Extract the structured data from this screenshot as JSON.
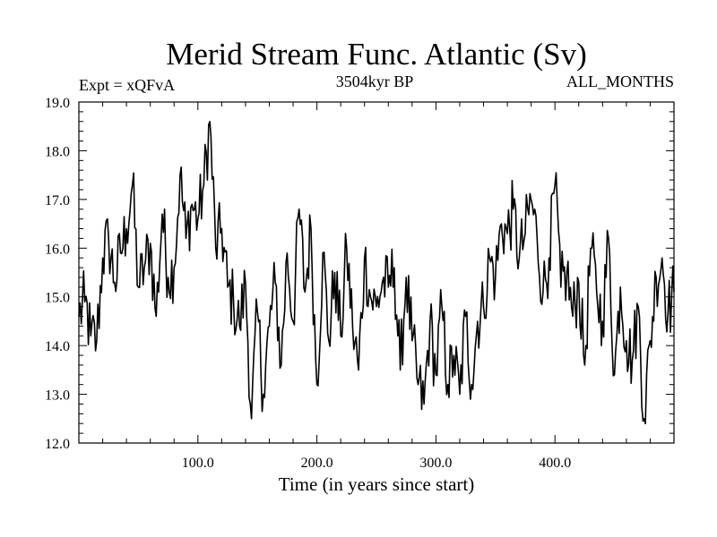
{
  "chart_data": {
    "type": "line",
    "title": "Merid Stream Func. Atlantic (Sv)",
    "subtitle_left": "Expt = xQFvA",
    "subtitle_center": "3504kyr BP",
    "subtitle_right": "ALL_MONTHS",
    "xlabel": "Time (in years since start)",
    "ylabel": "",
    "xlim": [
      0,
      500
    ],
    "ylim": [
      12.0,
      19.0
    ],
    "x_ticks": [
      100.0,
      200.0,
      300.0,
      400.0
    ],
    "x_tick_labels": [
      "100.0",
      "200.0",
      "300.0",
      "400.0"
    ],
    "y_ticks": [
      12.0,
      13.0,
      14.0,
      15.0,
      16.0,
      17.0,
      18.0,
      19.0
    ],
    "y_tick_labels": [
      "12.0",
      "13.0",
      "14.0",
      "15.0",
      "16.0",
      "17.0",
      "18.0",
      "19.0"
    ],
    "grid": false,
    "series": [
      {
        "name": "Merid Stream Func. Atlantic",
        "color": "#000000",
        "x": [
          0,
          5,
          10,
          15,
          20,
          25,
          30,
          35,
          40,
          45,
          50,
          55,
          60,
          65,
          70,
          75,
          80,
          85,
          90,
          95,
          100,
          105,
          110,
          115,
          120,
          125,
          130,
          135,
          140,
          145,
          150,
          155,
          160,
          165,
          170,
          175,
          180,
          185,
          190,
          195,
          200,
          205,
          210,
          215,
          220,
          225,
          230,
          235,
          240,
          245,
          250,
          255,
          260,
          265,
          270,
          275,
          280,
          285,
          290,
          295,
          300,
          305,
          310,
          315,
          320,
          325,
          330,
          335,
          340,
          345,
          350,
          355,
          360,
          365,
          370,
          375,
          380,
          385,
          390,
          395,
          400,
          405,
          410,
          415,
          420,
          425,
          430,
          435,
          440,
          445,
          450,
          455,
          460,
          465,
          470,
          475,
          480,
          485,
          490,
          495,
          500
        ],
        "values": [
          14.6,
          14.9,
          14.2,
          14.1,
          15.8,
          16.2,
          15.3,
          15.9,
          16.4,
          17.3,
          15.2,
          15.6,
          16.1,
          14.6,
          16.7,
          15.4,
          15.6,
          17.5,
          16.2,
          16.9,
          16.6,
          17.3,
          18.6,
          16.0,
          16.4,
          15.2,
          14.9,
          14.4,
          15.3,
          12.5,
          14.7,
          13.0,
          14.4,
          15.3,
          13.6,
          15.9,
          14.5,
          16.8,
          15.1,
          16.4,
          13.2,
          15.9,
          14.1,
          15.5,
          14.2,
          16.0,
          14.4,
          13.5,
          15.8,
          15.0,
          14.8,
          15.3,
          15.2,
          15.6,
          13.5,
          15.4,
          14.1,
          13.2,
          12.8,
          14.5,
          13.4,
          14.8,
          13.2,
          13.8,
          13.0,
          14.6,
          13.2,
          14.5,
          14.8,
          15.8,
          15.4,
          16.5,
          16.3,
          16.8,
          15.8,
          16.3,
          17.0,
          16.2,
          15.1,
          15.8,
          17.3,
          15.2,
          15.5,
          14.6,
          15.3,
          13.6,
          16.0,
          15.1,
          14.5,
          16.2,
          13.4,
          15.2,
          14.1,
          13.7,
          14.8,
          12.5,
          14.1,
          15.4,
          15.8,
          14.7,
          15.1
        ]
      }
    ]
  }
}
